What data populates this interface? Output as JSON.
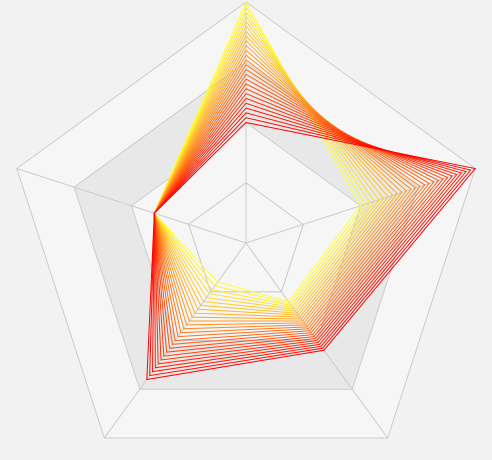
{
  "chart_data": {
    "type": "radar",
    "title": "",
    "axes": 5,
    "max": 100,
    "split_levels": 4,
    "grid": true,
    "legend": "none",
    "split_area_colors": [
      "#f6f6f6",
      "#e8e8e8"
    ],
    "grid_line_color": "#cccccc",
    "series_color_start": "#ffff33",
    "series_color_end": "#ff0000",
    "series": [
      {
        "values": [
          100,
          50,
          30,
          20,
          40
        ]
      },
      {
        "values": [
          98,
          52,
          31,
          22,
          40
        ]
      },
      {
        "values": [
          96,
          54,
          32,
          24,
          40
        ]
      },
      {
        "values": [
          94,
          56,
          33,
          26,
          40
        ]
      },
      {
        "values": [
          92,
          58,
          34,
          28,
          40
        ]
      },
      {
        "values": [
          90,
          60,
          35,
          30,
          40
        ]
      },
      {
        "values": [
          88,
          62,
          36,
          32,
          40
        ]
      },
      {
        "values": [
          86,
          64,
          37,
          34,
          40
        ]
      },
      {
        "values": [
          84,
          66,
          38,
          36,
          40
        ]
      },
      {
        "values": [
          82,
          68,
          39,
          38,
          40
        ]
      },
      {
        "values": [
          80,
          70,
          40,
          40,
          40
        ]
      },
      {
        "values": [
          78,
          72,
          41,
          42,
          40
        ]
      },
      {
        "values": [
          76,
          74,
          42,
          44,
          40
        ]
      },
      {
        "values": [
          74,
          76,
          43,
          46,
          40
        ]
      },
      {
        "values": [
          72,
          78,
          44,
          48,
          40
        ]
      },
      {
        "values": [
          70,
          80,
          45,
          50,
          40
        ]
      },
      {
        "values": [
          68,
          82,
          46,
          52,
          40
        ]
      },
      {
        "values": [
          66,
          84,
          47,
          54,
          40
        ]
      },
      {
        "values": [
          64,
          86,
          48,
          56,
          40
        ]
      },
      {
        "values": [
          62,
          88,
          49,
          58,
          40
        ]
      },
      {
        "values": [
          60,
          90,
          50,
          60,
          40
        ]
      },
      {
        "values": [
          58,
          92,
          51,
          62,
          40
        ]
      },
      {
        "values": [
          56,
          94,
          52,
          64,
          40
        ]
      },
      {
        "values": [
          54,
          96,
          53,
          66,
          40
        ]
      },
      {
        "values": [
          52,
          98,
          54,
          68,
          40
        ]
      },
      {
        "values": [
          50,
          100,
          55,
          70,
          40
        ]
      }
    ]
  }
}
